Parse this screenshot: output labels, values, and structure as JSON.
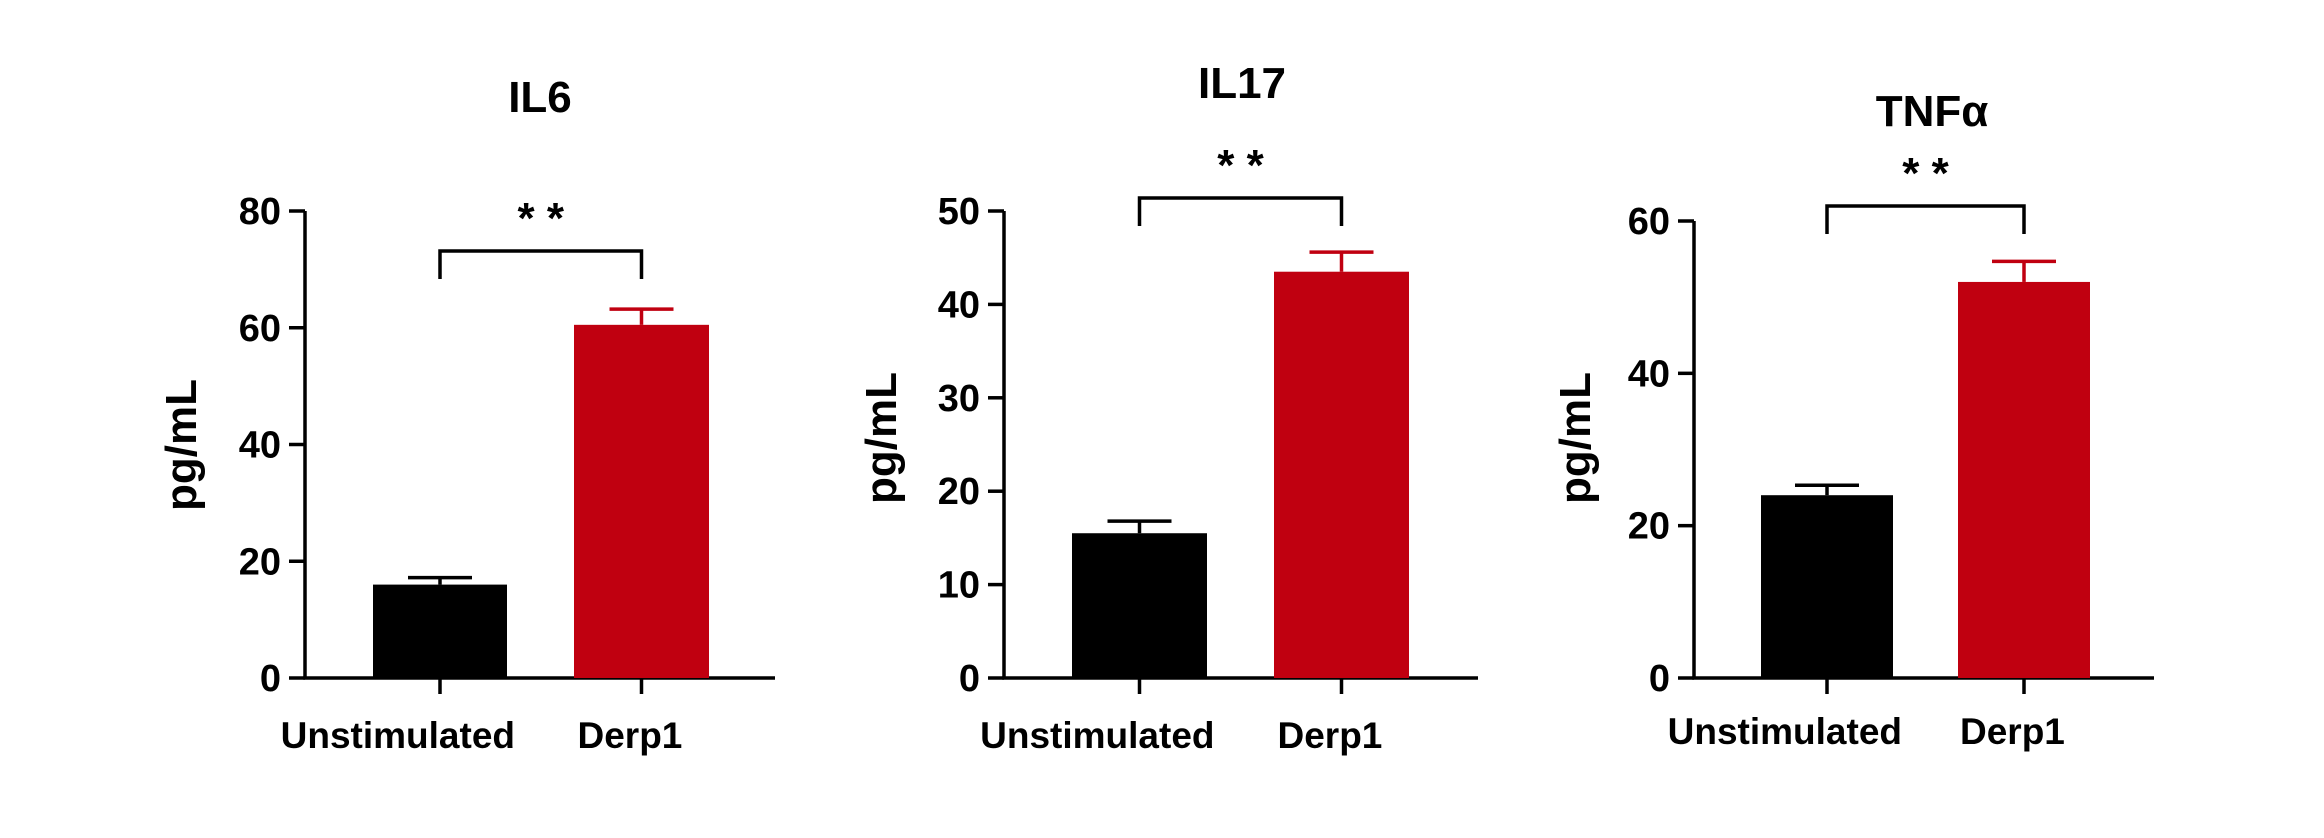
{
  "chart_data": [
    {
      "type": "bar",
      "title": "IL6",
      "ylabel": "pg/mL",
      "xlabel": "",
      "categories": [
        "Unstimulated",
        "Derp1"
      ],
      "values": [
        16,
        60.5
      ],
      "errors": [
        1.2,
        2.7
      ],
      "colors": [
        "#000000",
        "#C00010"
      ],
      "ylim": [
        0,
        80
      ],
      "yticks": [
        0,
        20,
        40,
        60,
        80
      ],
      "significance": "* *",
      "grid": false
    },
    {
      "type": "bar",
      "title": "IL17",
      "ylabel": "pg/mL",
      "xlabel": "",
      "categories": [
        "Unstimulated",
        "Derp1"
      ],
      "values": [
        15.5,
        43.5
      ],
      "errors": [
        1.3,
        2.1
      ],
      "colors": [
        "#000000",
        "#C00010"
      ],
      "ylim": [
        0,
        50
      ],
      "yticks": [
        0,
        10,
        20,
        30,
        40,
        50
      ],
      "significance": "* *",
      "grid": false
    },
    {
      "type": "bar",
      "title": "TNFα",
      "ylabel": "pg/mL",
      "xlabel": "",
      "categories": [
        "Unstimulated",
        "Derp1"
      ],
      "values": [
        24,
        52
      ],
      "errors": [
        1.3,
        2.7
      ],
      "colors": [
        "#000000",
        "#C00010"
      ],
      "ylim": [
        0,
        60
      ],
      "yticks": [
        0,
        20,
        40,
        60
      ],
      "significance": "* *",
      "grid": false
    }
  ]
}
